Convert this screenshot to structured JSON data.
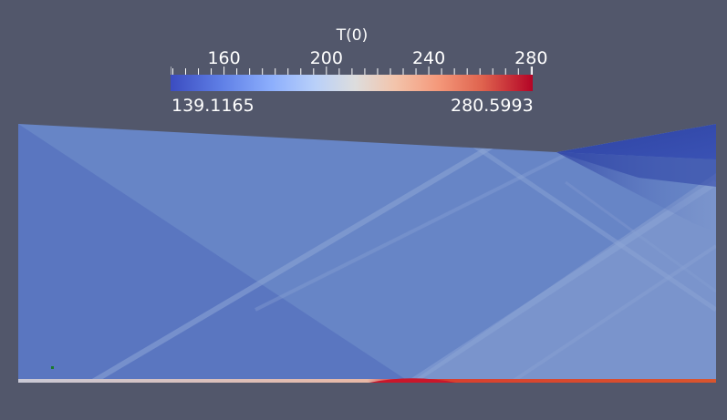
{
  "colorbar": {
    "title": "T(0)",
    "ticks": [
      {
        "value": 160,
        "label": "160"
      },
      {
        "value": 200,
        "label": "200"
      },
      {
        "value": 240,
        "label": "240"
      },
      {
        "value": 280,
        "label": "280"
      }
    ],
    "min_label": "139.1165",
    "max_label": "280.5993",
    "min": 139.1165,
    "max": 280.5993,
    "colormap": "Cool to Warm",
    "colors": [
      "#3b4cc0",
      "#8daffd",
      "#dddddd",
      "#f4987a",
      "#b40426"
    ]
  },
  "scene": {
    "background": "#52576b",
    "field_base_color": "#6785c6"
  }
}
